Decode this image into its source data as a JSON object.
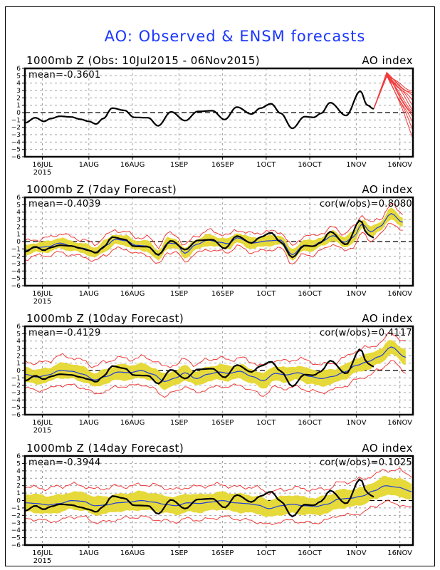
{
  "figure_title": "AO: Observed & ENSM forecasts",
  "colors": {
    "title": "#1a36ff",
    "observed": "#000000",
    "ensemble_mean": "#1f3fd8",
    "spread_band": "#e6d93a",
    "ensemble_members": "#f03c3c",
    "zero_line": "#000000",
    "grid": "#a0a0a0"
  },
  "chart_data": [
    {
      "type": "line",
      "title": "1000mb Z (Obs: 10Jul2015 - 06Nov2015)",
      "right_title": "AO index",
      "stat_left": "mean=-0.3601",
      "stat_right": "",
      "xlabel": "",
      "ylabel": "",
      "x_unit": "days since 10Jul2015",
      "xlim": [
        0,
        133.5
      ],
      "ylim": [
        -6,
        6
      ],
      "yticks": [
        6,
        5,
        4,
        3,
        2,
        1,
        0,
        -1,
        -2,
        -3,
        -4,
        -5,
        -6
      ],
      "xticks": [
        {
          "day": 6,
          "label": "16JUL",
          "sub": "2015"
        },
        {
          "day": 22,
          "label": "1AUG"
        },
        {
          "day": 37,
          "label": "16AUG"
        },
        {
          "day": 53,
          "label": "1SEP"
        },
        {
          "day": 68,
          "label": "16SEP"
        },
        {
          "day": 83,
          "label": "1OCT"
        },
        {
          "day": 98,
          "label": "16OCT"
        },
        {
          "day": 114,
          "label": "1NOV"
        },
        {
          "day": 129,
          "label": "16NOV"
        }
      ],
      "grid": true,
      "observed": [
        [
          0,
          -1.4
        ],
        [
          3.6,
          -0.7
        ],
        [
          6.5,
          -1.2
        ],
        [
          9,
          -0.8
        ],
        [
          12,
          -0.5
        ],
        [
          16,
          -0.6
        ],
        [
          19,
          -0.9
        ],
        [
          22,
          -1.2
        ],
        [
          24.5,
          -1.55
        ],
        [
          27,
          -0.8
        ],
        [
          30,
          0.6
        ],
        [
          34.3,
          0.3
        ],
        [
          37.5,
          -0.65
        ],
        [
          42.4,
          -0.7
        ],
        [
          45.8,
          -1.8
        ],
        [
          50.3,
          0.1
        ],
        [
          55.2,
          -1.1
        ],
        [
          59.4,
          0.15
        ],
        [
          64.5,
          0.25
        ],
        [
          68.7,
          -0.95
        ],
        [
          72.9,
          0.75
        ],
        [
          78,
          -0.2
        ],
        [
          81,
          0.6
        ],
        [
          84.7,
          1.2
        ],
        [
          88,
          -0.1
        ],
        [
          92,
          -2.15
        ],
        [
          96.2,
          -0.55
        ],
        [
          99.4,
          -0.65
        ],
        [
          101.9,
          -0.1
        ],
        [
          105,
          1.35
        ],
        [
          110.5,
          -0.4
        ],
        [
          115.4,
          2.9
        ],
        [
          117.8,
          1.0
        ],
        [
          120,
          0.5
        ]
      ],
      "members_start": [
        120,
        0.5
      ],
      "members_peak": [
        124.5,
        5.2
      ],
      "members_end_day": 133.5,
      "members_end_values": [
        3.0,
        2.4,
        1.9,
        1.5,
        1.1,
        0.6,
        0.2,
        -0.4,
        -1.0,
        -1.6,
        -2.3,
        -3.2
      ]
    },
    {
      "type": "line",
      "title": "1000mb Z (7day Forecast)",
      "right_title": "AO index",
      "stat_left": "mean=-0.4039",
      "stat_right": "cor(w/obs)=0.8080",
      "xlim": [
        0,
        133.5
      ],
      "ylim": [
        -6,
        6
      ],
      "yticks": [
        6,
        5,
        4,
        3,
        2,
        1,
        0,
        -1,
        -2,
        -3,
        -4,
        -5,
        -6
      ],
      "xticks": [
        {
          "day": 6,
          "label": "16JUL",
          "sub": "2015"
        },
        {
          "day": 22,
          "label": "1AUG"
        },
        {
          "day": 37,
          "label": "16AUG"
        },
        {
          "day": 53,
          "label": "1SEP"
        },
        {
          "day": 68,
          "label": "16SEP"
        },
        {
          "day": 83,
          "label": "1OCT"
        },
        {
          "day": 98,
          "label": "16OCT"
        },
        {
          "day": 114,
          "label": "1NOV"
        },
        {
          "day": 129,
          "label": "16NOV"
        }
      ],
      "grid": true,
      "observed_ref": 0,
      "mean": [
        [
          0,
          -1.2
        ],
        [
          4,
          -0.8
        ],
        [
          8,
          -0.7
        ],
        [
          12,
          -0.2
        ],
        [
          16,
          -0.6
        ],
        [
          20,
          -0.9
        ],
        [
          24,
          -1.5
        ],
        [
          28,
          -0.5
        ],
        [
          31,
          0.3
        ],
        [
          35,
          0.1
        ],
        [
          38,
          -0.5
        ],
        [
          42,
          -0.6
        ],
        [
          46,
          -1.9
        ],
        [
          49,
          -0.2
        ],
        [
          52,
          -0.3
        ],
        [
          55,
          -1.6
        ],
        [
          59,
          -0.4
        ],
        [
          63,
          0.2
        ],
        [
          67,
          -0.1
        ],
        [
          70,
          -0.3
        ],
        [
          73,
          0.5
        ],
        [
          78,
          -0.2
        ],
        [
          84,
          0.1
        ],
        [
          88,
          0.2
        ],
        [
          92,
          -1.8
        ],
        [
          96,
          -0.5
        ],
        [
          99,
          -0.6
        ],
        [
          102,
          0.0
        ],
        [
          106,
          0.8
        ],
        [
          110,
          -0.1
        ],
        [
          113,
          0.6
        ],
        [
          116,
          2.4
        ],
        [
          119,
          1.3
        ],
        [
          122,
          2.0
        ],
        [
          126,
          3.8
        ],
        [
          130,
          2.6
        ]
      ],
      "band_halfwidth": 0.7,
      "members_halfwidth": 1.2,
      "forecast_end_day": 130
    },
    {
      "type": "line",
      "title": "1000mb Z (10day Forecast)",
      "right_title": "AO index",
      "stat_left": "mean=-0.4129",
      "stat_right": "cor(w/obs)=0.4117",
      "xlim": [
        0,
        133.5
      ],
      "ylim": [
        -6,
        6
      ],
      "yticks": [
        6,
        5,
        4,
        3,
        2,
        1,
        0,
        -1,
        -2,
        -3,
        -4,
        -5,
        -6
      ],
      "xticks": [
        {
          "day": 6,
          "label": "16JUL",
          "sub": "2015"
        },
        {
          "day": 22,
          "label": "1AUG"
        },
        {
          "day": 37,
          "label": "16AUG"
        },
        {
          "day": 53,
          "label": "1SEP"
        },
        {
          "day": 68,
          "label": "16SEP"
        },
        {
          "day": 83,
          "label": "1OCT"
        },
        {
          "day": 98,
          "label": "16OCT"
        },
        {
          "day": 114,
          "label": "1NOV"
        },
        {
          "day": 129,
          "label": "16NOV"
        }
      ],
      "grid": true,
      "observed_ref": 0,
      "mean": [
        [
          0,
          -0.5
        ],
        [
          4,
          -0.9
        ],
        [
          8,
          -0.6
        ],
        [
          12,
          0.0
        ],
        [
          16,
          -0.1
        ],
        [
          20,
          -0.5
        ],
        [
          24,
          -1.3
        ],
        [
          28,
          -0.8
        ],
        [
          32,
          -0.2
        ],
        [
          36,
          -0.3
        ],
        [
          40,
          0.0
        ],
        [
          44,
          -0.5
        ],
        [
          48,
          -1.5
        ],
        [
          52,
          -1.0
        ],
        [
          55,
          -0.3
        ],
        [
          59,
          -1.1
        ],
        [
          63,
          -0.5
        ],
        [
          67,
          -0.2
        ],
        [
          70,
          -0.4
        ],
        [
          74,
          -0.1
        ],
        [
          78,
          -0.8
        ],
        [
          82,
          -1.4
        ],
        [
          86,
          -0.4
        ],
        [
          90,
          -0.6
        ],
        [
          94,
          -0.3
        ],
        [
          98,
          -0.8
        ],
        [
          102,
          -1.1
        ],
        [
          106,
          -0.8
        ],
        [
          110,
          -0.2
        ],
        [
          114,
          0.7
        ],
        [
          118,
          1.2
        ],
        [
          122,
          1.9
        ],
        [
          126,
          3.2
        ],
        [
          131,
          1.8
        ]
      ],
      "band_halfwidth": 1.0,
      "members_halfwidth": 1.9,
      "forecast_end_day": 131
    },
    {
      "type": "line",
      "title": "1000mb Z (14day Forecast)",
      "right_title": "AO index",
      "stat_left": "mean=-0.3944",
      "stat_right": "cor(w/obs)=0.1025",
      "xlim": [
        0,
        133.5
      ],
      "ylim": [
        -6,
        6
      ],
      "yticks": [
        6,
        5,
        4,
        3,
        2,
        1,
        0,
        -1,
        -2,
        -3,
        -4,
        -5,
        -6
      ],
      "xticks": [
        {
          "day": 6,
          "label": "16JUL",
          "sub": "2015"
        },
        {
          "day": 22,
          "label": "1AUG"
        },
        {
          "day": 37,
          "label": "16AUG"
        },
        {
          "day": 53,
          "label": "1SEP"
        },
        {
          "day": 68,
          "label": "16SEP"
        },
        {
          "day": 83,
          "label": "1OCT"
        },
        {
          "day": 98,
          "label": "16OCT"
        },
        {
          "day": 114,
          "label": "1NOV"
        },
        {
          "day": 129,
          "label": "16NOV"
        }
      ],
      "grid": true,
      "observed_ref": 0,
      "mean": [
        [
          0,
          -0.3
        ],
        [
          4,
          -0.4
        ],
        [
          8,
          -0.6
        ],
        [
          12,
          -0.4
        ],
        [
          16,
          0.0
        ],
        [
          20,
          -0.1
        ],
        [
          24,
          -0.7
        ],
        [
          28,
          -0.6
        ],
        [
          32,
          -0.3
        ],
        [
          36,
          -0.2
        ],
        [
          40,
          0.0
        ],
        [
          44,
          -0.2
        ],
        [
          48,
          -0.5
        ],
        [
          52,
          -0.7
        ],
        [
          56,
          -0.3
        ],
        [
          60,
          -0.4
        ],
        [
          64,
          -0.2
        ],
        [
          68,
          0.0
        ],
        [
          72,
          -0.3
        ],
        [
          76,
          -0.4
        ],
        [
          80,
          -0.6
        ],
        [
          84,
          -1.1
        ],
        [
          88,
          -0.7
        ],
        [
          92,
          -0.5
        ],
        [
          96,
          -0.7
        ],
        [
          100,
          -0.8
        ],
        [
          104,
          -0.5
        ],
        [
          108,
          0.2
        ],
        [
          112,
          0.3
        ],
        [
          116,
          0.6
        ],
        [
          120,
          1.3
        ],
        [
          124,
          2.0
        ],
        [
          128,
          1.8
        ],
        [
          133.5,
          1.2
        ]
      ],
      "band_halfwidth": 1.2,
      "members_halfwidth": 2.2,
      "forecast_end_day": 133.5
    }
  ]
}
